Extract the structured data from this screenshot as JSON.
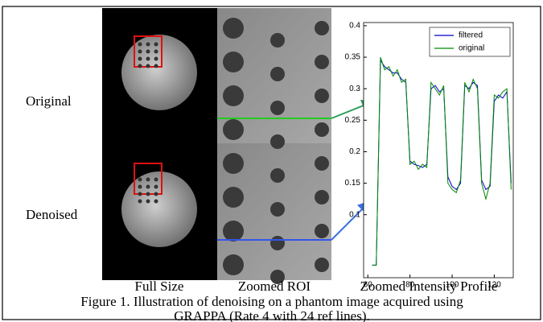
{
  "row_labels": [
    "Original",
    "Denoised"
  ],
  "column_labels": [
    "Full Size",
    "Zoomed ROI",
    "Zoomed Intensity Profile"
  ],
  "caption": [
    "Figure 1. Illustration of denoising on a phantom image acquired using",
    "GRAPPA (Rate 4 with 24 ref lines)."
  ],
  "chart_data": {
    "type": "line",
    "x": [
      62,
      64,
      66,
      68,
      70,
      72,
      74,
      76,
      78,
      80,
      82,
      84,
      86,
      88,
      90,
      92,
      94,
      96,
      98,
      100,
      102,
      104,
      106,
      108,
      110,
      112,
      114,
      116,
      118,
      120,
      122,
      124,
      126,
      128
    ],
    "series": [
      {
        "name": "filtered",
        "color": "#0000cc",
        "values": [
          0.02,
          0.02,
          0.345,
          0.335,
          0.33,
          0.325,
          0.325,
          0.315,
          0.31,
          0.185,
          0.18,
          0.178,
          0.175,
          0.18,
          0.3,
          0.305,
          0.295,
          0.3,
          0.16,
          0.145,
          0.14,
          0.15,
          0.305,
          0.3,
          0.31,
          0.305,
          0.155,
          0.14,
          0.145,
          0.28,
          0.29,
          0.285,
          0.295,
          0.15
        ]
      },
      {
        "name": "original",
        "color": "#008800",
        "values": [
          0.02,
          0.02,
          0.35,
          0.33,
          0.335,
          0.32,
          0.33,
          0.31,
          0.315,
          0.18,
          0.185,
          0.172,
          0.18,
          0.175,
          0.31,
          0.3,
          0.29,
          0.305,
          0.15,
          0.14,
          0.135,
          0.155,
          0.31,
          0.295,
          0.315,
          0.3,
          0.15,
          0.125,
          0.15,
          0.29,
          0.285,
          0.295,
          0.3,
          0.14
        ]
      }
    ],
    "xlim": [
      58,
      129
    ],
    "ylim": [
      0,
      0.405
    ],
    "xticks": [
      60,
      80,
      100,
      120
    ],
    "yticks": [
      0.1,
      0.15,
      0.2,
      0.25,
      0.3,
      0.35,
      0.4
    ],
    "legend": "upper right"
  }
}
